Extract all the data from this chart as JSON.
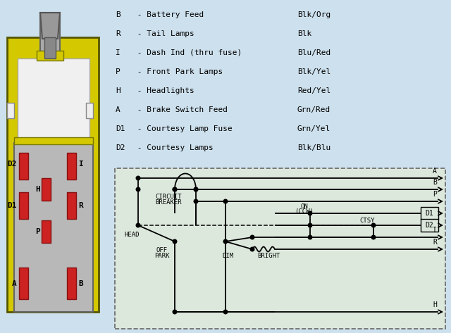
{
  "bg_color": "#cde0ed",
  "legend_items": [
    [
      "B",
      " - Battery Feed",
      "Blk/Org"
    ],
    [
      "R",
      " - Tail Lamps",
      "Blk"
    ],
    [
      "I",
      " - Dash Ind (thru fuse)",
      "Blu/Red"
    ],
    [
      "P",
      " - Front Park Lamps",
      "Blk/Yel"
    ],
    [
      "H",
      " - Headlights",
      "Red/Yel"
    ],
    [
      "A",
      " - Brake Switch Feed",
      "Grn/Red"
    ],
    [
      "D1",
      " - Courtesy Lamp Fuse",
      "Grn/Yel"
    ],
    [
      "D2",
      " - Courtesy Lamps",
      "Blk/Blu"
    ]
  ],
  "pin_color": "#cc2222",
  "pin_border": "#881111",
  "yellow": "#d4c800",
  "grey_body": "#b8b8b8",
  "white_box": "#f0f0f0",
  "diag_bg": "#dce8dc"
}
